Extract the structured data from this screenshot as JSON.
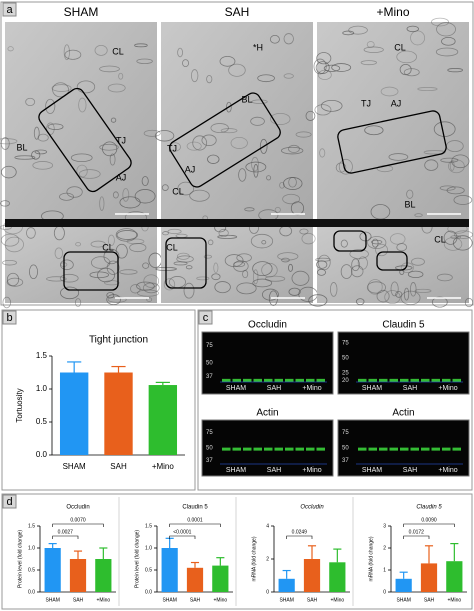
{
  "panel_labels": [
    "a",
    "b",
    "c",
    "d"
  ],
  "micrographs": {
    "columns": [
      "SHAM",
      "SAH",
      "+Mino"
    ],
    "labels": [
      [
        "CL",
        "TJ",
        "AJ",
        "BL",
        "CL"
      ],
      [
        "*H",
        "BL",
        "TJ",
        "AJ",
        "CL",
        "CL"
      ],
      [
        "CL",
        "TJ",
        "AJ",
        "BL",
        "CL"
      ]
    ]
  },
  "blots": [
    {
      "title": "Occludin",
      "markers": [
        75,
        50,
        37
      ],
      "lanes": [
        "SHAM",
        "SAH",
        "+Mino"
      ]
    },
    {
      "title": "Claudin 5",
      "markers": [
        75,
        50,
        25,
        20
      ],
      "lanes": [
        "SHAM",
        "SAH",
        "+Mino"
      ]
    },
    {
      "title": "Actin",
      "markers": [
        75,
        50,
        37
      ],
      "lanes": [
        "SHAM",
        "SAH",
        "+Mino"
      ]
    },
    {
      "title": "Actin",
      "markers": [
        75,
        50,
        37
      ],
      "lanes": [
        "SHAM",
        "SAH",
        "+Mino"
      ]
    }
  ],
  "chart_data": [
    {
      "type": "bar",
      "title": "Tight junction",
      "ylabel": "Tortuosity",
      "categories": [
        "SHAM",
        "SAH",
        "+Mino"
      ],
      "values": [
        1.25,
        1.25,
        1.06
      ],
      "errors": [
        0.16,
        0.09,
        0.04
      ],
      "colors": [
        "#2196f3",
        "#e8601c",
        "#2ebd2e"
      ],
      "ylim": [
        0,
        1.5
      ],
      "yticks": [
        {
          "value": 0,
          "label": "0.0"
        },
        0.5,
        {
          "value": 1,
          "label": "1.0"
        },
        1.5
      ],
      "italic": false,
      "comparisons": []
    },
    {
      "type": "bar",
      "title": "Occludin",
      "ylabel": "Protein level (fold change)",
      "categories": [
        "SHAM",
        "SAH",
        "+Mino"
      ],
      "values": [
        1.0,
        0.75,
        0.75
      ],
      "errors": [
        0.1,
        0.18,
        0.25
      ],
      "colors": [
        "#2196f3",
        "#e8601c",
        "#2ebd2e"
      ],
      "ylim": [
        0,
        1.5
      ],
      "yticks": [
        {
          "value": 0,
          "label": "0.0"
        },
        0.5,
        {
          "value": 1,
          "label": "1.0"
        },
        1.5
      ],
      "italic": false,
      "comparisons": [
        {
          "from": 0,
          "to": 1,
          "label": "0.0027"
        },
        {
          "from": 0,
          "to": 2,
          "label": "0.0070"
        }
      ]
    },
    {
      "type": "bar",
      "title": "Claudin 5",
      "ylabel": "Protein level (fold change)",
      "categories": [
        "SHAM",
        "SAH",
        "+Mino"
      ],
      "values": [
        1.0,
        0.55,
        0.6
      ],
      "errors": [
        0.22,
        0.12,
        0.18
      ],
      "colors": [
        "#2196f3",
        "#e8601c",
        "#2ebd2e"
      ],
      "ylim": [
        0,
        1.5
      ],
      "yticks": [
        {
          "value": 0,
          "label": "0.0"
        },
        0.5,
        {
          "value": 1,
          "label": "1.0"
        },
        1.5
      ],
      "italic": false,
      "comparisons": [
        {
          "from": 0,
          "to": 1,
          "label": "<0.0001"
        },
        {
          "from": 0,
          "to": 2,
          "label": "0.0001"
        }
      ]
    },
    {
      "type": "bar",
      "title": "Occludin",
      "ylabel": "mRNA (fold change)",
      "categories": [
        "SHAM",
        "SAH",
        "+Mino"
      ],
      "values": [
        0.8,
        2.0,
        1.8
      ],
      "errors": [
        0.5,
        0.8,
        0.8
      ],
      "colors": [
        "#2196f3",
        "#e8601c",
        "#2ebd2e"
      ],
      "ylim": [
        0,
        4
      ],
      "yticks": [
        0,
        2,
        4
      ],
      "italic": true,
      "comparisons": [
        {
          "from": 0,
          "to": 1,
          "label": "0.0249"
        }
      ]
    },
    {
      "type": "bar",
      "title": "Claudin 5",
      "ylabel": "mRNA (fold change)",
      "categories": [
        "SHAM",
        "SAH",
        "+Mino"
      ],
      "values": [
        0.6,
        1.3,
        1.4
      ],
      "errors": [
        0.3,
        0.8,
        0.8
      ],
      "colors": [
        "#2196f3",
        "#e8601c",
        "#2ebd2e"
      ],
      "ylim": [
        0,
        3
      ],
      "yticks": [
        0,
        1,
        2,
        3
      ],
      "italic": true,
      "comparisons": [
        {
          "from": 0,
          "to": 1,
          "label": "0.0172"
        },
        {
          "from": 0,
          "to": 2,
          "label": "0.0090"
        }
      ]
    }
  ]
}
